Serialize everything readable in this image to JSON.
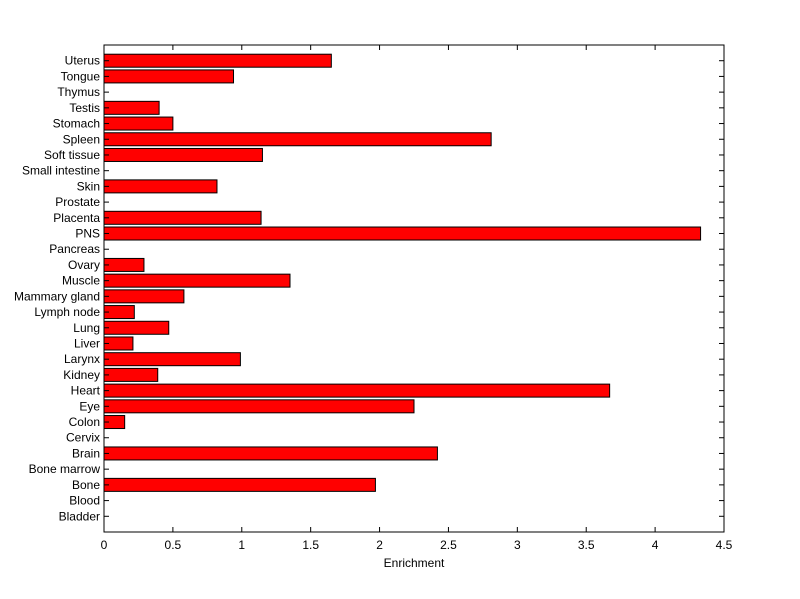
{
  "chart_data": {
    "type": "bar",
    "orientation": "horizontal",
    "title": "",
    "xlabel": "Enrichment",
    "ylabel": "",
    "xlim": [
      0,
      4.5
    ],
    "xticks": [
      0,
      0.5,
      1,
      1.5,
      2,
      2.5,
      3,
      3.5,
      4,
      4.5
    ],
    "grid": false,
    "bar_color": "#ff0000",
    "categories": [
      "Bladder",
      "Blood",
      "Bone",
      "Bone marrow",
      "Brain",
      "Cervix",
      "Colon",
      "Eye",
      "Heart",
      "Kidney",
      "Larynx",
      "Liver",
      "Lung",
      "Lymph node",
      "Mammary gland",
      "Muscle",
      "Ovary",
      "Pancreas",
      "PNS",
      "Placenta",
      "Prostate",
      "Skin",
      "Small intestine",
      "Soft tissue",
      "Spleen",
      "Stomach",
      "Testis",
      "Thymus",
      "Tongue",
      "Uterus"
    ],
    "values": [
      0,
      0,
      1.97,
      0,
      2.42,
      0,
      0.15,
      2.25,
      3.67,
      0.39,
      0.99,
      0.21,
      0.47,
      0.22,
      0.58,
      1.35,
      0.29,
      0,
      4.33,
      1.14,
      0,
      0.82,
      0,
      1.15,
      2.81,
      0.5,
      0.4,
      0,
      0.94,
      1.65
    ]
  }
}
